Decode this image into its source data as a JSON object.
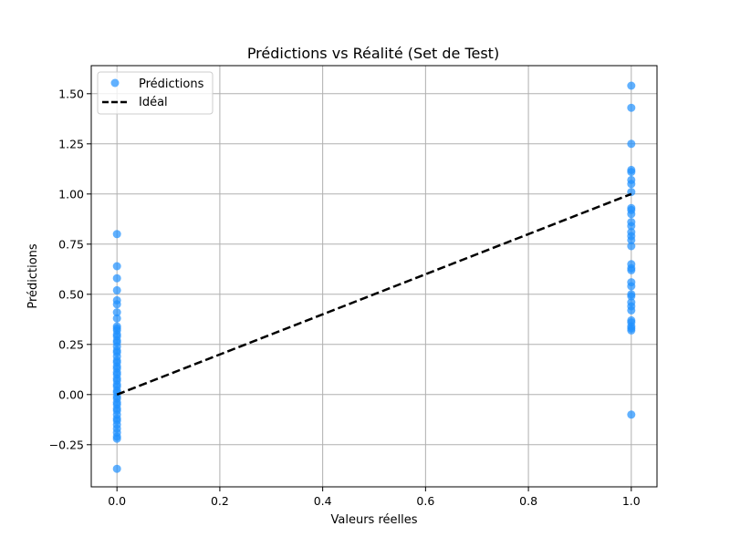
{
  "chart_data": {
    "type": "scatter",
    "title": "Prédictions vs Réalité (Set de Test)",
    "xlabel": "Valeurs réelles",
    "ylabel": "Prédictions",
    "xlim": [
      -0.05,
      1.05
    ],
    "ylim": [
      -0.46,
      1.64
    ],
    "grid": true,
    "legend_position": "top-left",
    "x_ticks": [
      {
        "value": 0.0,
        "label": "0.0"
      },
      {
        "value": 0.2,
        "label": "0.2"
      },
      {
        "value": 0.4,
        "label": "0.4"
      },
      {
        "value": 0.6,
        "label": "0.6"
      },
      {
        "value": 0.8,
        "label": "0.8"
      },
      {
        "value": 1.0,
        "label": "1.0"
      }
    ],
    "y_ticks": [
      {
        "value": -0.25,
        "label": "−0.25"
      },
      {
        "value": 0.0,
        "label": "0.00"
      },
      {
        "value": 0.25,
        "label": "0.25"
      },
      {
        "value": 0.5,
        "label": "0.50"
      },
      {
        "value": 0.75,
        "label": "0.75"
      },
      {
        "value": 1.0,
        "label": "1.00"
      },
      {
        "value": 1.25,
        "label": "1.25"
      },
      {
        "value": 1.5,
        "label": "1.50"
      }
    ],
    "series": [
      {
        "name": "Prédictions",
        "kind": "scatter",
        "color": "#1e90ff",
        "points": [
          [
            0,
            0.8
          ],
          [
            0,
            0.64
          ],
          [
            0,
            0.58
          ],
          [
            0,
            0.52
          ],
          [
            0,
            0.47
          ],
          [
            0,
            0.45
          ],
          [
            0,
            0.41
          ],
          [
            0,
            0.38
          ],
          [
            0,
            0.34
          ],
          [
            0,
            0.33
          ],
          [
            0,
            0.32
          ],
          [
            0,
            0.3
          ],
          [
            0,
            0.29
          ],
          [
            0,
            0.27
          ],
          [
            0,
            0.26
          ],
          [
            0,
            0.24
          ],
          [
            0,
            0.22
          ],
          [
            0,
            0.21
          ],
          [
            0,
            0.19
          ],
          [
            0,
            0.17
          ],
          [
            0,
            0.16
          ],
          [
            0,
            0.14
          ],
          [
            0,
            0.13
          ],
          [
            0,
            0.11
          ],
          [
            0,
            0.1
          ],
          [
            0,
            0.08
          ],
          [
            0,
            0.07
          ],
          [
            0,
            0.05
          ],
          [
            0,
            0.04
          ],
          [
            0,
            0.02
          ],
          [
            0,
            0.01
          ],
          [
            0,
            -0.01
          ],
          [
            0,
            -0.02
          ],
          [
            0,
            -0.04
          ],
          [
            0,
            -0.05
          ],
          [
            0,
            -0.07
          ],
          [
            0,
            -0.08
          ],
          [
            0,
            -0.1
          ],
          [
            0,
            -0.12
          ],
          [
            0,
            -0.13
          ],
          [
            0,
            -0.15
          ],
          [
            0,
            -0.17
          ],
          [
            0,
            -0.19
          ],
          [
            0,
            -0.21
          ],
          [
            0,
            -0.22
          ],
          [
            0,
            -0.37
          ],
          [
            1,
            1.54
          ],
          [
            1,
            1.43
          ],
          [
            1,
            1.25
          ],
          [
            1,
            1.12
          ],
          [
            1,
            1.11
          ],
          [
            1,
            1.07
          ],
          [
            1,
            1.05
          ],
          [
            1,
            1.01
          ],
          [
            1,
            0.93
          ],
          [
            1,
            0.92
          ],
          [
            1,
            0.9
          ],
          [
            1,
            0.86
          ],
          [
            1,
            0.84
          ],
          [
            1,
            0.81
          ],
          [
            1,
            0.79
          ],
          [
            1,
            0.77
          ],
          [
            1,
            0.74
          ],
          [
            1,
            0.65
          ],
          [
            1,
            0.63
          ],
          [
            1,
            0.62
          ],
          [
            1,
            0.56
          ],
          [
            1,
            0.54
          ],
          [
            1,
            0.5
          ],
          [
            1,
            0.49
          ],
          [
            1,
            0.46
          ],
          [
            1,
            0.44
          ],
          [
            1,
            0.42
          ],
          [
            1,
            0.37
          ],
          [
            1,
            0.36
          ],
          [
            1,
            0.34
          ],
          [
            1,
            0.33
          ],
          [
            1,
            0.32
          ],
          [
            1,
            -0.1
          ]
        ]
      },
      {
        "name": "Idéal",
        "kind": "line",
        "style": "dashed",
        "color": "#000000",
        "points": [
          [
            0,
            0
          ],
          [
            1,
            1
          ]
        ]
      }
    ]
  }
}
